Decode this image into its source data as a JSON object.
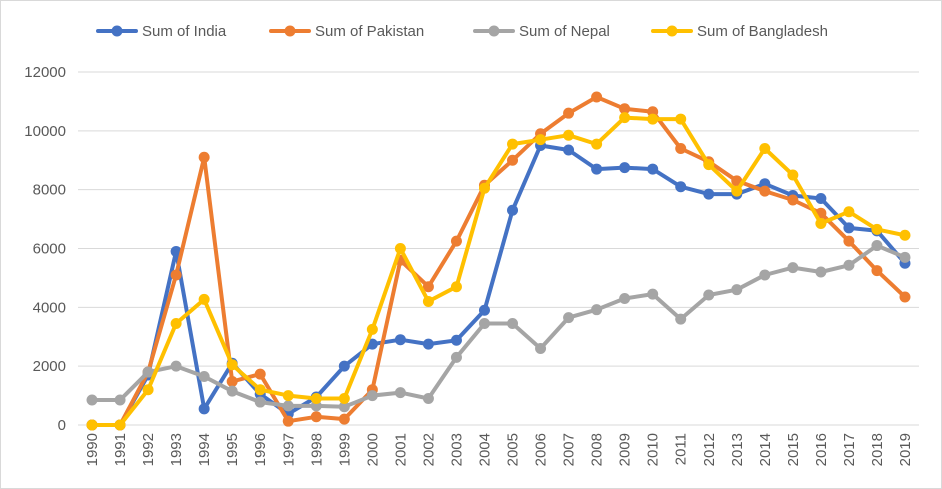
{
  "chart_data": {
    "type": "line",
    "title": "",
    "xlabel": "",
    "ylabel": "",
    "x": [
      "1990",
      "1991",
      "1992",
      "1993",
      "1994",
      "1995",
      "1996",
      "1997",
      "1998",
      "1999",
      "2000",
      "2001",
      "2002",
      "2003",
      "2004",
      "2005",
      "2006",
      "2007",
      "2008",
      "2009",
      "2010",
      "2011",
      "2012",
      "2013",
      "2014",
      "2015",
      "2016",
      "2017",
      "2018",
      "2019"
    ],
    "ylim": [
      0,
      12000
    ],
    "yticks": [
      0,
      2000,
      4000,
      6000,
      8000,
      10000,
      12000
    ],
    "grid": true,
    "legend_position": "top",
    "series": [
      {
        "name": "Sum of India",
        "color": "#4472C4",
        "values": [
          0,
          0,
          1700,
          5900,
          550,
          2100,
          1050,
          380,
          950,
          2000,
          2750,
          2900,
          2750,
          2880,
          3900,
          7300,
          9500,
          9350,
          8700,
          8750,
          8700,
          8100,
          7850,
          7850,
          8200,
          7800,
          7700,
          6700,
          6600,
          5500
        ]
      },
      {
        "name": "Sum of Pakistan",
        "color": "#ED7D31",
        "values": [
          0,
          0,
          1800,
          5100,
          9100,
          1480,
          1730,
          130,
          280,
          200,
          1200,
          5600,
          4700,
          6250,
          8150,
          9000,
          9900,
          10600,
          11150,
          10750,
          10650,
          9400,
          8950,
          8300,
          7950,
          7650,
          7200,
          6250,
          5250,
          4350
        ]
      },
      {
        "name": "Sum of Nepal",
        "color": "#A5A5A5",
        "values": [
          850,
          850,
          1800,
          2000,
          1650,
          1150,
          780,
          650,
          650,
          620,
          1000,
          1100,
          900,
          2300,
          3450,
          3450,
          2600,
          3650,
          3920,
          4300,
          4450,
          3600,
          4420,
          4600,
          5100,
          5350,
          5200,
          5430,
          6100,
          5700
        ]
      },
      {
        "name": "Sum of Bangladesh",
        "color": "#FFC000",
        "values": [
          0,
          0,
          1200,
          3450,
          4270,
          2050,
          1200,
          1000,
          900,
          900,
          3250,
          6000,
          4200,
          4700,
          8050,
          9550,
          9700,
          9850,
          9550,
          10450,
          10400,
          10400,
          8850,
          7950,
          9400,
          8500,
          6850,
          7250,
          6650,
          6450
        ]
      }
    ]
  }
}
